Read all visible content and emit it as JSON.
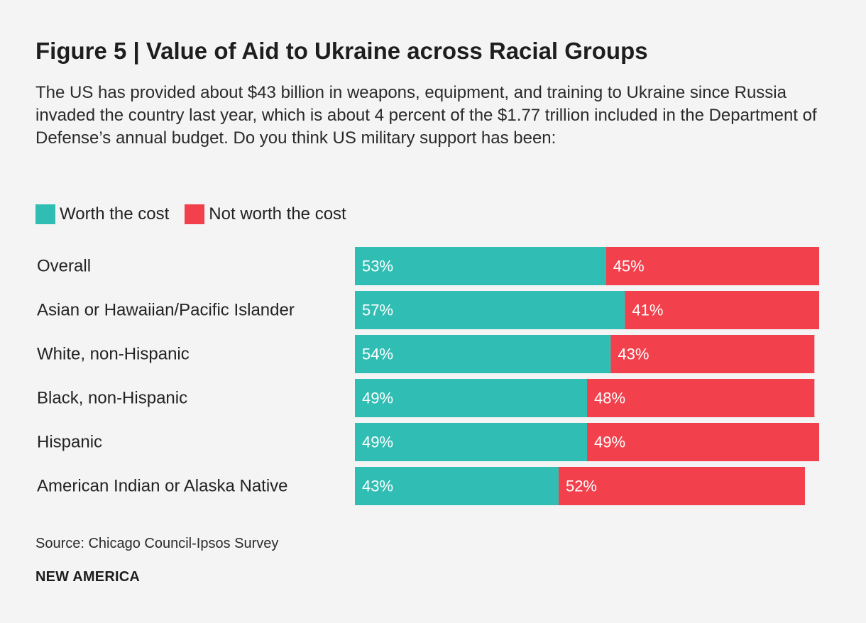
{
  "colors": {
    "worth": "#30bdb3",
    "not_worth": "#f2404c"
  },
  "legend": {
    "worth_label": "Worth the cost",
    "not_worth_label": "Not worth the cost"
  },
  "chart_data": {
    "type": "bar",
    "orientation": "horizontal",
    "stacked": true,
    "title": "Figure 5 | Value of Aid to Ukraine across Racial Groups",
    "subtitle": "The US has provided about $43 billion in weapons, equipment, and training to Ukraine since Russia invaded the country last year, which is about 4 percent of the $1.77 trillion included in the Department of Defense’s annual budget. Do you think US military support has been:",
    "categories": [
      "Overall",
      "Asian or Hawaiian/Pacific Islander",
      "White, non-Hispanic",
      "Black, non-Hispanic",
      "Hispanic",
      "American Indian or Alaska Native"
    ],
    "series": [
      {
        "name": "Worth the cost",
        "values": [
          53,
          57,
          54,
          49,
          49,
          43
        ]
      },
      {
        "name": "Not worth the cost",
        "values": [
          45,
          41,
          43,
          48,
          49,
          52
        ]
      }
    ],
    "xlim": [
      0,
      98
    ],
    "value_suffix": "%",
    "legend_position": "top-left",
    "grid": false,
    "xlabel": "",
    "ylabel": ""
  },
  "source": "Source: Chicago Council-Ipsos Survey",
  "brand": "NEW AMERICA"
}
